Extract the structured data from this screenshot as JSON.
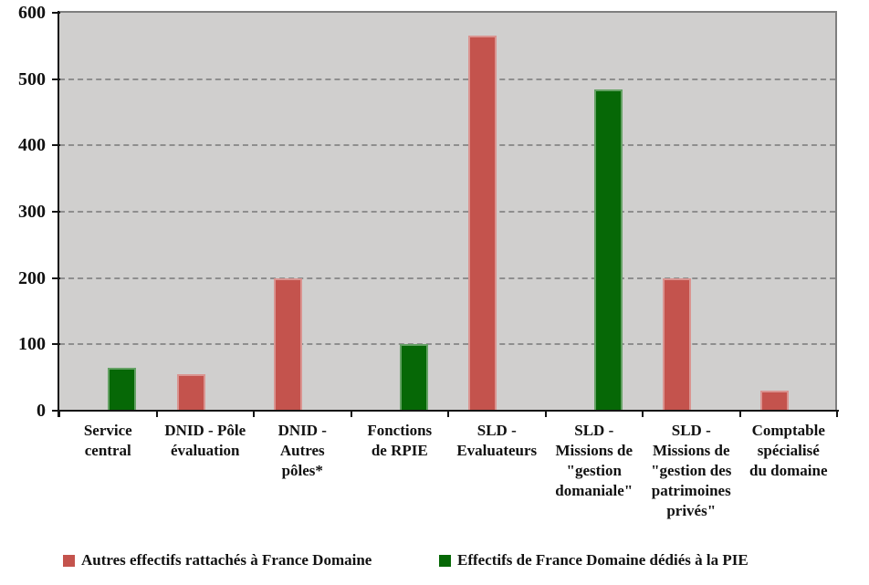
{
  "chart_data": {
    "type": "bar",
    "title": "",
    "xlabel": "",
    "ylabel": "",
    "ylim": [
      0,
      600
    ],
    "yticks": [
      0,
      100,
      200,
      300,
      400,
      500,
      600
    ],
    "grid": "horizontal-dashed",
    "plot_background": "#D0CFCE",
    "gridline_color": "#8E8E8E",
    "axis_color": "#141414",
    "legend_position": "bottom",
    "categories": [
      "Service\ncentral",
      "DNID - Pôle\névaluation",
      "DNID -\nAutres\npôles*",
      "Fonctions\nde RPIE",
      "SLD -\nEvaluateurs",
      "SLD -\nMissions de\n\"gestion\ndomaniale\"",
      "SLD -\nMissions de\n\"gestion des\npatrimoines\nprivés\"",
      "Comptable\nspécialisé\ndu domaine"
    ],
    "series": [
      {
        "name": "Autres effectifs rattachés à France Domaine",
        "color": "#C4534D",
        "values": [
          null,
          55,
          200,
          null,
          565,
          null,
          200,
          30
        ]
      },
      {
        "name": "Effectifs de France Domaine dédiés à la PIE",
        "color": "#066806",
        "values": [
          65,
          null,
          null,
          100,
          null,
          485,
          null,
          null
        ]
      }
    ]
  }
}
